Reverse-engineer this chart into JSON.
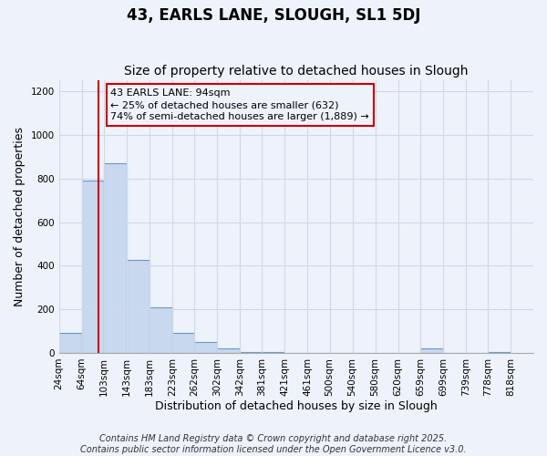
{
  "title": "43, EARLS LANE, SLOUGH, SL1 5DJ",
  "subtitle": "Size of property relative to detached houses in Slough",
  "xlabel": "Distribution of detached houses by size in Slough",
  "ylabel": "Number of detached properties",
  "bar_left_edges": [
    24,
    64,
    103,
    143,
    183,
    223,
    262,
    302,
    342,
    381,
    421,
    461,
    500,
    540,
    580,
    620,
    659,
    699,
    739,
    778
  ],
  "bar_widths": [
    40,
    39,
    40,
    40,
    40,
    39,
    40,
    40,
    39,
    40,
    40,
    39,
    40,
    40,
    40,
    39,
    40,
    40,
    39,
    40
  ],
  "bar_heights": [
    90,
    790,
    870,
    425,
    210,
    90,
    50,
    20,
    5,
    5,
    0,
    0,
    0,
    0,
    0,
    0,
    20,
    0,
    0,
    5
  ],
  "tick_labels": [
    "24sqm",
    "64sqm",
    "103sqm",
    "143sqm",
    "183sqm",
    "223sqm",
    "262sqm",
    "302sqm",
    "342sqm",
    "381sqm",
    "421sqm",
    "461sqm",
    "500sqm",
    "540sqm",
    "580sqm",
    "620sqm",
    "659sqm",
    "699sqm",
    "739sqm",
    "778sqm",
    "818sqm"
  ],
  "tick_positions": [
    24,
    64,
    103,
    143,
    183,
    223,
    262,
    302,
    342,
    381,
    421,
    461,
    500,
    540,
    580,
    620,
    659,
    699,
    739,
    778,
    818
  ],
  "bar_color": "#c8d8ee",
  "bar_edge_color": "#6699cc",
  "vline_x": 94,
  "vline_color": "#cc0000",
  "ylim": [
    0,
    1250
  ],
  "xlim": [
    24,
    858
  ],
  "yticks": [
    0,
    200,
    400,
    600,
    800,
    1000,
    1200
  ],
  "annotation_title": "43 EARLS LANE: 94sqm",
  "annotation_line1": "← 25% of detached houses are smaller (632)",
  "annotation_line2": "74% of semi-detached houses are larger (1,889) →",
  "annotation_box_edge_color": "#cc0000",
  "footnote1": "Contains HM Land Registry data © Crown copyright and database right 2025.",
  "footnote2": "Contains public sector information licensed under the Open Government Licence v3.0.",
  "background_color": "#eef2fb",
  "grid_color": "#d0d8e8",
  "title_fontsize": 12,
  "subtitle_fontsize": 10,
  "axis_label_fontsize": 9,
  "tick_fontsize": 7.5,
  "annotation_fontsize": 8,
  "footnote_fontsize": 7
}
